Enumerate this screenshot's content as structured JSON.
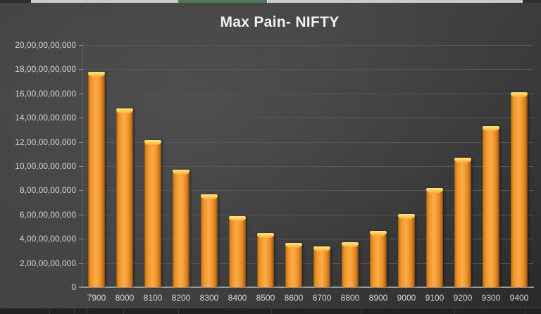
{
  "chart_data": {
    "type": "bar",
    "title": "Max Pain- NIFTY",
    "xlabel": "",
    "ylabel": "",
    "categories": [
      "7900",
      "8000",
      "8100",
      "8200",
      "8300",
      "8400",
      "8500",
      "8600",
      "8700",
      "8800",
      "8900",
      "9000",
      "9100",
      "9200",
      "9300",
      "9400"
    ],
    "values": [
      17800000000,
      14750000000,
      12150000000,
      9700000000,
      7700000000,
      5900000000,
      4500000000,
      3650000000,
      3350000000,
      3700000000,
      4650000000,
      6050000000,
      8200000000,
      10700000000,
      13300000000,
      16100000000
    ],
    "ylim": [
      0,
      20000000000
    ],
    "ytick_step": 2000000000,
    "yticks": [
      {
        "value": 0,
        "label": "0"
      },
      {
        "value": 2000000000,
        "label": "2,00,00,00,000"
      },
      {
        "value": 4000000000,
        "label": "4,00,00,00,000"
      },
      {
        "value": 6000000000,
        "label": "6,00,00,00,000"
      },
      {
        "value": 8000000000,
        "label": "8,00,00,00,000"
      },
      {
        "value": 10000000000,
        "label": "10,00,00,00,000"
      },
      {
        "value": 12000000000,
        "label": "12,00,00,00,000"
      },
      {
        "value": 14000000000,
        "label": "14,00,00,00,000"
      },
      {
        "value": 16000000000,
        "label": "16,00,00,00,000"
      },
      {
        "value": 18000000000,
        "label": "18,00,00,00,000"
      },
      {
        "value": 20000000000,
        "label": "20,00,00,00,000"
      }
    ],
    "grid": true,
    "legend": false
  },
  "colors": {
    "bar_fill": "#F59D33",
    "bar_highlight": "#FFD35E",
    "bar_shadow_edge": "#7A4A10",
    "chart_background": "#3E3E3E",
    "gridline": "#575757",
    "axis_line": "#9B9B9B",
    "label_text": "#D6D6D6",
    "title_text": "#F1F1F1",
    "spreadsheet_strip": "#CBCBCB",
    "excel_selection_green": "#4D7A5C"
  }
}
